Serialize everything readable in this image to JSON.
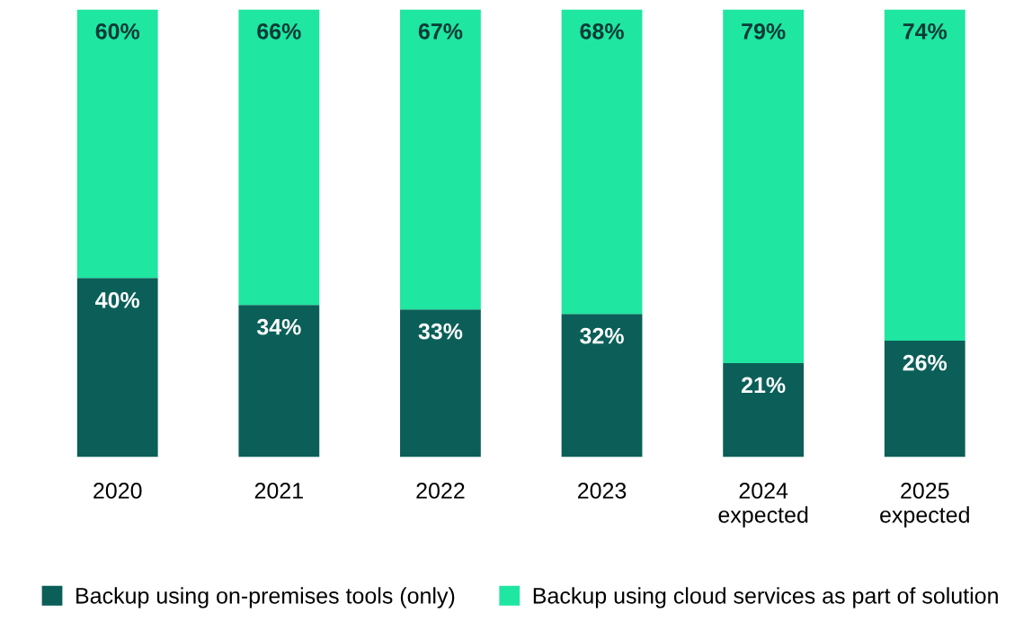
{
  "chart_data": {
    "type": "bar",
    "stacked": true,
    "legend": "bottom",
    "categories": [
      "2020",
      "2021",
      "2022",
      "2023",
      "2024\nexpected",
      "2025\nexpected"
    ],
    "series": [
      {
        "name": "Backup using on-premises tools (only)",
        "color": "#0b5f58",
        "values": [
          40,
          34,
          33,
          32,
          21,
          26
        ],
        "value_labels": [
          "40%",
          "34%",
          "33%",
          "32%",
          "21%",
          "26%"
        ]
      },
      {
        "name": "Backup using cloud services as part of solution",
        "color": "#1fe6a0",
        "values": [
          60,
          66,
          67,
          68,
          79,
          74
        ],
        "value_labels": [
          "60%",
          "66%",
          "67%",
          "68%",
          "79%",
          "74%"
        ]
      }
    ]
  }
}
